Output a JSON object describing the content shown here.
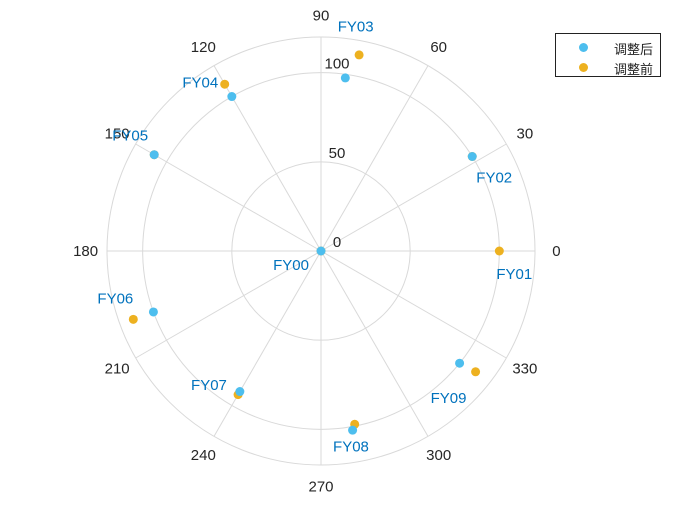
{
  "chart_data": {
    "type": "scatter",
    "coordinate_system": "polar",
    "r_ticks": [
      0,
      50,
      100
    ],
    "rlim": [
      0,
      120
    ],
    "theta_ticks": [
      0,
      30,
      60,
      90,
      120,
      150,
      180,
      210,
      240,
      270,
      300,
      330
    ],
    "theta_direction": "counterclockwise",
    "theta_zero": "right",
    "grid": true,
    "legend_position": "top-right",
    "series": [
      {
        "name": "调整后",
        "color": "#4DBEEE",
        "points": [
          {
            "label": "FY00",
            "theta": 0,
            "r": 0
          },
          {
            "label": "FY02",
            "theta": 32,
            "r": 100
          },
          {
            "label": "FY03",
            "theta": 82,
            "r": 98
          },
          {
            "label": "FY04",
            "theta": 120,
            "r": 100
          },
          {
            "label": "FY05",
            "theta": 150,
            "r": 108
          },
          {
            "label": "FY06",
            "theta": 200,
            "r": 100
          },
          {
            "label": "FY07",
            "theta": 240,
            "r": 91
          },
          {
            "label": "FY08",
            "theta": 280,
            "r": 102
          },
          {
            "label": "FY09",
            "theta": 321,
            "r": 100
          }
        ]
      },
      {
        "name": "调整前",
        "color": "#EDB120",
        "points": [
          {
            "label": "FY00",
            "theta": 0,
            "r": 0
          },
          {
            "label": "FY01",
            "theta": 0,
            "r": 100
          },
          {
            "label": "FY02",
            "theta": 32,
            "r": 100
          },
          {
            "label": "FY03",
            "theta": 79,
            "r": 112
          },
          {
            "label": "FY04",
            "theta": 120,
            "r": 108
          },
          {
            "label": "FY05",
            "theta": 150,
            "r": 108
          },
          {
            "label": "FY06",
            "theta": 200,
            "r": 112
          },
          {
            "label": "FY07",
            "theta": 240,
            "r": 93
          },
          {
            "label": "FY08",
            "theta": 281,
            "r": 99
          },
          {
            "label": "FY09",
            "theta": 322,
            "r": 110
          }
        ]
      }
    ],
    "point_labels": [
      {
        "text": "FY00",
        "theta": 0,
        "r": 0
      },
      {
        "text": "FY01",
        "theta": 0,
        "r": 100
      },
      {
        "text": "FY02",
        "theta": 32,
        "r": 100
      },
      {
        "text": "FY03",
        "theta": 80,
        "r": 112
      },
      {
        "text": "FY04",
        "theta": 120,
        "r": 104
      },
      {
        "text": "FY05",
        "theta": 150,
        "r": 108
      },
      {
        "text": "FY06",
        "theta": 200,
        "r": 106
      },
      {
        "text": "FY07",
        "theta": 240,
        "r": 92
      },
      {
        "text": "FY08",
        "theta": 280,
        "r": 100
      },
      {
        "text": "FY09",
        "theta": 321,
        "r": 105
      }
    ],
    "label_color": "#0072BD"
  }
}
